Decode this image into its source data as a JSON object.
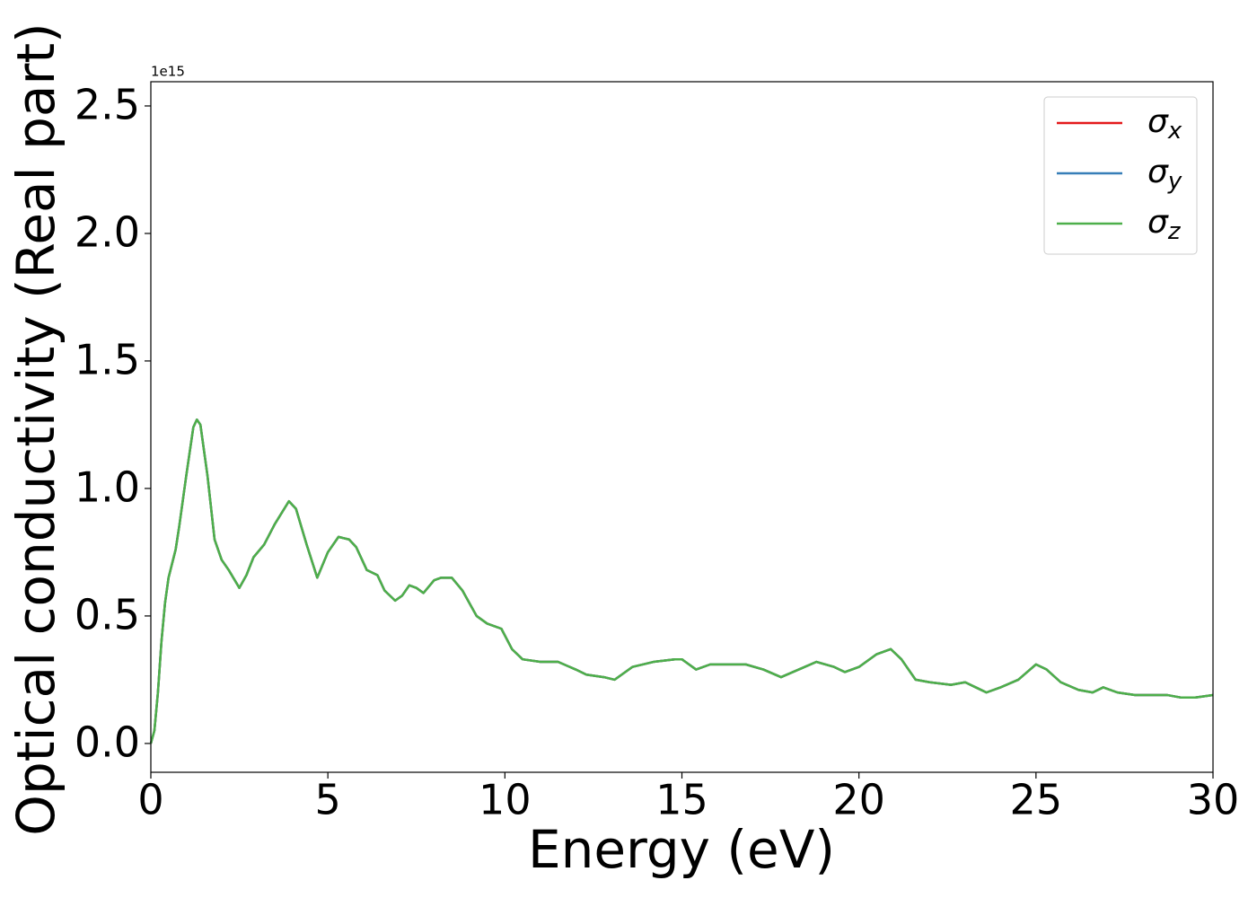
{
  "chart_data": {
    "type": "line",
    "x_label": "Energy (eV)",
    "y_label": "Optical conductivity (Real part)",
    "y_offset_label": "1e15",
    "x": [
      0,
      0.1,
      0.2,
      0.3,
      0.4,
      0.5,
      0.7,
      0.8,
      1.0,
      1.2,
      1.3,
      1.4,
      1.6,
      1.8,
      2.0,
      2.2,
      2.5,
      2.7,
      2.9,
      3.2,
      3.5,
      3.9,
      4.1,
      4.4,
      4.7,
      5.0,
      5.3,
      5.6,
      5.8,
      6.1,
      6.4,
      6.6,
      6.9,
      7.1,
      7.3,
      7.5,
      7.7,
      8.0,
      8.2,
      8.5,
      8.8,
      9.0,
      9.2,
      9.5,
      9.9,
      10.2,
      10.5,
      11.0,
      11.5,
      12.0,
      12.3,
      12.8,
      13.1,
      13.6,
      14.2,
      14.8,
      15.0,
      15.4,
      15.8,
      16.2,
      16.5,
      16.8,
      17.3,
      17.8,
      18.3,
      18.8,
      19.3,
      19.6,
      20.0,
      20.5,
      20.9,
      21.2,
      21.6,
      22.0,
      22.6,
      23.0,
      23.3,
      23.6,
      24.0,
      24.5,
      25.0,
      25.3,
      25.7,
      26.2,
      26.6,
      26.9,
      27.3,
      27.8,
      28.3,
      28.7,
      29.1,
      29.5,
      30.0
    ],
    "series": [
      {
        "name": "σx",
        "color": "#e41a1c",
        "values": [
          0.0,
          0.05,
          0.2,
          0.4,
          0.55,
          0.65,
          0.76,
          0.85,
          1.05,
          1.24,
          1.27,
          1.25,
          1.05,
          0.8,
          0.72,
          0.68,
          0.61,
          0.66,
          0.73,
          0.78,
          0.86,
          0.95,
          0.92,
          0.78,
          0.65,
          0.75,
          0.81,
          0.8,
          0.77,
          0.68,
          0.66,
          0.6,
          0.56,
          0.58,
          0.62,
          0.61,
          0.59,
          0.64,
          0.65,
          0.65,
          0.6,
          0.55,
          0.5,
          0.47,
          0.45,
          0.37,
          0.33,
          0.32,
          0.32,
          0.29,
          0.27,
          0.26,
          0.25,
          0.3,
          0.32,
          0.33,
          0.33,
          0.29,
          0.31,
          0.31,
          0.31,
          0.31,
          0.29,
          0.26,
          0.29,
          0.32,
          0.3,
          0.28,
          0.3,
          0.35,
          0.37,
          0.33,
          0.25,
          0.24,
          0.23,
          0.24,
          0.22,
          0.2,
          0.22,
          0.25,
          0.31,
          0.29,
          0.24,
          0.21,
          0.2,
          0.22,
          0.2,
          0.19,
          0.19,
          0.19,
          0.18,
          0.18,
          0.19
        ]
      },
      {
        "name": "σy",
        "color": "#377eb8",
        "values": [
          0.0,
          0.05,
          0.2,
          0.4,
          0.55,
          0.65,
          0.76,
          0.85,
          1.05,
          1.24,
          1.27,
          1.25,
          1.05,
          0.8,
          0.72,
          0.68,
          0.61,
          0.66,
          0.73,
          0.78,
          0.86,
          0.95,
          0.92,
          0.78,
          0.65,
          0.75,
          0.81,
          0.8,
          0.77,
          0.68,
          0.66,
          0.6,
          0.56,
          0.58,
          0.62,
          0.61,
          0.59,
          0.64,
          0.65,
          0.65,
          0.6,
          0.55,
          0.5,
          0.47,
          0.45,
          0.37,
          0.33,
          0.32,
          0.32,
          0.29,
          0.27,
          0.26,
          0.25,
          0.3,
          0.32,
          0.33,
          0.33,
          0.29,
          0.31,
          0.31,
          0.31,
          0.31,
          0.29,
          0.26,
          0.29,
          0.32,
          0.3,
          0.28,
          0.3,
          0.35,
          0.37,
          0.33,
          0.25,
          0.24,
          0.23,
          0.24,
          0.22,
          0.2,
          0.22,
          0.25,
          0.31,
          0.29,
          0.24,
          0.21,
          0.2,
          0.22,
          0.2,
          0.19,
          0.19,
          0.19,
          0.18,
          0.18,
          0.19
        ]
      },
      {
        "name": "σz",
        "color": "#4daf4a",
        "values": [
          0.0,
          0.05,
          0.2,
          0.4,
          0.55,
          0.65,
          0.76,
          0.85,
          1.05,
          1.24,
          1.27,
          1.25,
          1.05,
          0.8,
          0.72,
          0.68,
          0.61,
          0.66,
          0.73,
          0.78,
          0.86,
          0.95,
          0.92,
          0.78,
          0.65,
          0.75,
          0.81,
          0.8,
          0.77,
          0.68,
          0.66,
          0.6,
          0.56,
          0.58,
          0.62,
          0.61,
          0.59,
          0.64,
          0.65,
          0.65,
          0.6,
          0.55,
          0.5,
          0.47,
          0.45,
          0.37,
          0.33,
          0.32,
          0.32,
          0.29,
          0.27,
          0.26,
          0.25,
          0.3,
          0.32,
          0.33,
          0.33,
          0.29,
          0.31,
          0.31,
          0.31,
          0.31,
          0.29,
          0.26,
          0.29,
          0.32,
          0.3,
          0.28,
          0.3,
          0.35,
          0.37,
          0.33,
          0.25,
          0.24,
          0.23,
          0.24,
          0.22,
          0.2,
          0.22,
          0.25,
          0.31,
          0.29,
          0.24,
          0.21,
          0.2,
          0.22,
          0.2,
          0.19,
          0.19,
          0.19,
          0.18,
          0.18,
          0.19
        ]
      }
    ],
    "xlim": [
      0,
      30
    ],
    "xticks": [
      0,
      5,
      10,
      15,
      20,
      25,
      30
    ],
    "ylim": [
      -0.113,
      2.595
    ],
    "yticks": [
      {
        "value": 0,
        "label": "0.0"
      },
      0.5,
      {
        "value": 1,
        "label": "1.0"
      },
      1.5,
      {
        "value": 2,
        "label": "2.0"
      },
      2.5
    ],
    "grid": false,
    "legend": "upper right"
  }
}
